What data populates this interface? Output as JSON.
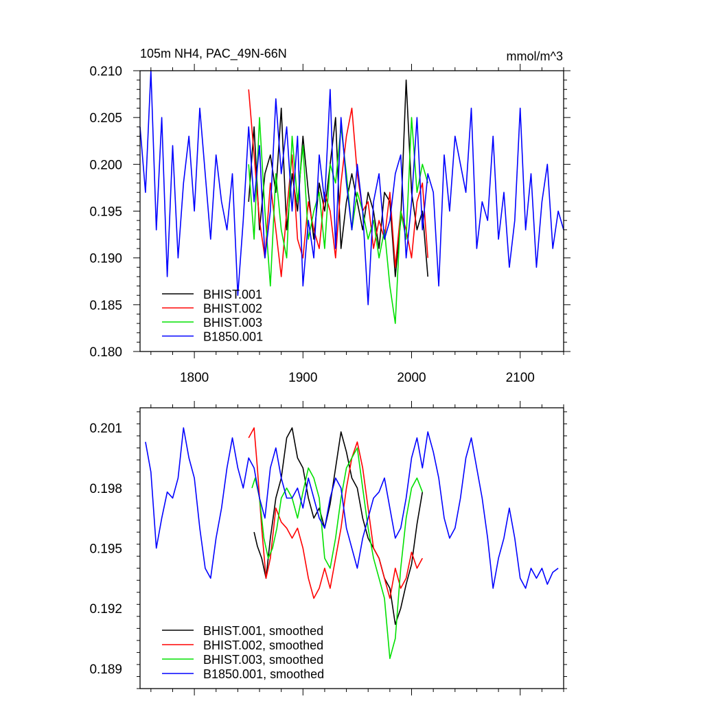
{
  "chart_data": [
    {
      "type": "line",
      "title": "105m NH4, PAC_49N-66N",
      "units_label": "mmol/m^3",
      "xlim": [
        1750,
        2140
      ],
      "ylim": [
        0.18,
        0.21
      ],
      "x_ticks": [
        1800,
        1900,
        2000,
        2100
      ],
      "x_tick_labels": [
        "1800",
        "1900",
        "2000",
        "2100"
      ],
      "y_ticks": [
        0.18,
        0.185,
        0.19,
        0.195,
        0.2,
        0.205,
        0.21
      ],
      "y_tick_labels": [
        "0.180",
        "0.185",
        "0.190",
        "0.195",
        "0.200",
        "0.205",
        "0.210"
      ],
      "grid": false,
      "legend_position": "bottom-left",
      "series": [
        {
          "name": "BHIST.001",
          "color": "#000000",
          "x_start": 1850,
          "x_step": 5,
          "values": [
            0.196,
            0.204,
            0.193,
            0.199,
            0.201,
            0.197,
            0.206,
            0.193,
            0.199,
            0.195,
            0.203,
            0.197,
            0.192,
            0.198,
            0.195,
            0.2,
            0.205,
            0.191,
            0.196,
            0.199,
            0.196,
            0.193,
            0.197,
            0.195,
            0.191,
            0.197,
            0.196,
            0.188,
            0.194,
            0.209,
            0.197,
            0.193,
            0.195,
            0.188
          ]
        },
        {
          "name": "BHIST.002",
          "color": "#ff0000",
          "x_start": 1850,
          "x_step": 5,
          "values": [
            0.208,
            0.201,
            0.194,
            0.19,
            0.198,
            0.193,
            0.188,
            0.195,
            0.201,
            0.192,
            0.19,
            0.196,
            0.193,
            0.191,
            0.197,
            0.195,
            0.19,
            0.198,
            0.203,
            0.206,
            0.199,
            0.195,
            0.196,
            0.191,
            0.194,
            0.192,
            0.197,
            0.189,
            0.195,
            0.193,
            0.19,
            0.196,
            0.198,
            0.19
          ]
        },
        {
          "name": "BHIST.003",
          "color": "#00e000",
          "x_start": 1850,
          "x_step": 5,
          "values": [
            0.2,
            0.192,
            0.205,
            0.195,
            0.187,
            0.199,
            0.193,
            0.19,
            0.203,
            0.196,
            0.202,
            0.192,
            0.195,
            0.197,
            0.191,
            0.2,
            0.198,
            0.204,
            0.199,
            0.193,
            0.197,
            0.195,
            0.192,
            0.194,
            0.19,
            0.193,
            0.187,
            0.183,
            0.195,
            0.192,
            0.205,
            0.197,
            0.2,
            0.198
          ]
        },
        {
          "name": "B1850.001",
          "color": "#0000ff",
          "x_start": 1750,
          "x_step": 5,
          "values": [
            0.204,
            0.197,
            0.21,
            0.193,
            0.205,
            0.188,
            0.202,
            0.19,
            0.198,
            0.203,
            0.195,
            0.206,
            0.199,
            0.192,
            0.201,
            0.196,
            0.193,
            0.199,
            0.186,
            0.194,
            0.204,
            0.196,
            0.202,
            0.19,
            0.195,
            0.207,
            0.199,
            0.204,
            0.195,
            0.203,
            0.187,
            0.194,
            0.19,
            0.201,
            0.196,
            0.208,
            0.191,
            0.205,
            0.198,
            0.193,
            0.2,
            0.195,
            0.185,
            0.196,
            0.199,
            0.192,
            0.194,
            0.199,
            0.201,
            0.19,
            0.196,
            0.205,
            0.193,
            0.199,
            0.197,
            0.187,
            0.201,
            0.195,
            0.203,
            0.2,
            0.197,
            0.206,
            0.191,
            0.196,
            0.194,
            0.203,
            0.192,
            0.197,
            0.189,
            0.194,
            0.206,
            0.193,
            0.199,
            0.189,
            0.196,
            0.2,
            0.191,
            0.195,
            0.193
          ]
        }
      ]
    },
    {
      "type": "line",
      "title": "",
      "xlim": [
        1750,
        2140
      ],
      "ylim": [
        0.188,
        0.202
      ],
      "x_ticks": [
        1800,
        1900,
        2000,
        2100
      ],
      "y_ticks": [
        0.189,
        0.192,
        0.195,
        0.198,
        0.201
      ],
      "y_tick_labels": [
        "0.189",
        "0.192",
        "0.195",
        "0.198",
        "0.201"
      ],
      "grid": false,
      "legend_position": "bottom-left",
      "series": [
        {
          "name": "BHIST.001, smoothed",
          "color": "#000000",
          "x": [
            1855,
            1858,
            1862,
            1866,
            1870,
            1875,
            1880,
            1885,
            1890,
            1895,
            1900,
            1905,
            1910,
            1915,
            1920,
            1925,
            1930,
            1935,
            1940,
            1945,
            1950,
            1955,
            1960,
            1965,
            1970,
            1975,
            1980,
            1985,
            1990,
            1995,
            2000,
            2005,
            2010
          ],
          "values": [
            0.1958,
            0.1951,
            0.1945,
            0.1935,
            0.1955,
            0.1975,
            0.1985,
            0.2005,
            0.201,
            0.1995,
            0.199,
            0.1975,
            0.1965,
            0.197,
            0.196,
            0.1972,
            0.199,
            0.2008,
            0.1998,
            0.1985,
            0.198,
            0.1965,
            0.1955,
            0.195,
            0.1945,
            0.1935,
            0.193,
            0.1912,
            0.192,
            0.1932,
            0.1942,
            0.1962,
            0.1978
          ]
        },
        {
          "name": "BHIST.002, smoothed",
          "color": "#ff0000",
          "x": [
            1850,
            1855,
            1858,
            1862,
            1866,
            1870,
            1875,
            1880,
            1885,
            1890,
            1895,
            1900,
            1905,
            1910,
            1915,
            1920,
            1925,
            1930,
            1935,
            1940,
            1945,
            1950,
            1955,
            1960,
            1965,
            1970,
            1975,
            1980,
            1985,
            1990,
            1995,
            2000,
            2005,
            2010
          ],
          "values": [
            0.2005,
            0.201,
            0.199,
            0.196,
            0.1935,
            0.1945,
            0.197,
            0.1963,
            0.196,
            0.1955,
            0.196,
            0.195,
            0.1935,
            0.1925,
            0.193,
            0.194,
            0.193,
            0.1945,
            0.196,
            0.198,
            0.1995,
            0.2003,
            0.199,
            0.197,
            0.195,
            0.1945,
            0.1935,
            0.1925,
            0.194,
            0.193,
            0.1935,
            0.1948,
            0.194,
            0.1945
          ]
        },
        {
          "name": "BHIST.003, smoothed",
          "color": "#00e000",
          "x": [
            1853,
            1856,
            1860,
            1864,
            1868,
            1872,
            1876,
            1880,
            1885,
            1890,
            1895,
            1900,
            1905,
            1910,
            1915,
            1920,
            1925,
            1930,
            1935,
            1940,
            1945,
            1950,
            1955,
            1960,
            1965,
            1970,
            1975,
            1980,
            1985,
            1990,
            1995,
            2000,
            2005,
            2010
          ],
          "values": [
            0.198,
            0.1985,
            0.1975,
            0.1955,
            0.1945,
            0.195,
            0.196,
            0.1975,
            0.198,
            0.1975,
            0.1965,
            0.1978,
            0.199,
            0.1985,
            0.1975,
            0.1945,
            0.194,
            0.1955,
            0.1975,
            0.199,
            0.1995,
            0.2,
            0.198,
            0.196,
            0.1945,
            0.1935,
            0.1925,
            0.1895,
            0.1905,
            0.194,
            0.1965,
            0.198,
            0.1985,
            0.1978
          ]
        },
        {
          "name": "B1850.001, smoothed",
          "color": "#0000ff",
          "x": [
            1755,
            1760,
            1765,
            1770,
            1775,
            1780,
            1785,
            1790,
            1795,
            1800,
            1805,
            1810,
            1815,
            1820,
            1825,
            1830,
            1835,
            1840,
            1845,
            1850,
            1855,
            1860,
            1865,
            1870,
            1875,
            1880,
            1885,
            1890,
            1895,
            1900,
            1905,
            1910,
            1915,
            1920,
            1925,
            1930,
            1935,
            1940,
            1945,
            1950,
            1955,
            1960,
            1965,
            1970,
            1975,
            1980,
            1985,
            1990,
            1995,
            2000,
            2005,
            2010,
            2015,
            2020,
            2025,
            2030,
            2035,
            2040,
            2045,
            2050,
            2055,
            2060,
            2065,
            2070,
            2075,
            2080,
            2085,
            2090,
            2095,
            2100,
            2105,
            2110,
            2115,
            2120,
            2125,
            2130,
            2135
          ],
          "values": [
            0.2003,
            0.1988,
            0.195,
            0.1965,
            0.1978,
            0.1975,
            0.1985,
            0.201,
            0.1995,
            0.1985,
            0.196,
            0.194,
            0.1935,
            0.1955,
            0.197,
            0.199,
            0.2005,
            0.199,
            0.198,
            0.1995,
            0.199,
            0.1975,
            0.1965,
            0.199,
            0.2,
            0.1985,
            0.1975,
            0.1975,
            0.198,
            0.197,
            0.1985,
            0.1975,
            0.1965,
            0.196,
            0.1975,
            0.1985,
            0.198,
            0.196,
            0.195,
            0.194,
            0.1955,
            0.1965,
            0.1975,
            0.1978,
            0.1985,
            0.197,
            0.1955,
            0.196,
            0.1975,
            0.1995,
            0.2005,
            0.199,
            0.2008,
            0.1998,
            0.1985,
            0.1965,
            0.1955,
            0.196,
            0.1975,
            0.1995,
            0.2005,
            0.199,
            0.1975,
            0.1955,
            0.193,
            0.1945,
            0.1955,
            0.197,
            0.1955,
            0.1935,
            0.193,
            0.194,
            0.1935,
            0.194,
            0.1932,
            0.1938,
            0.194
          ]
        }
      ]
    }
  ]
}
